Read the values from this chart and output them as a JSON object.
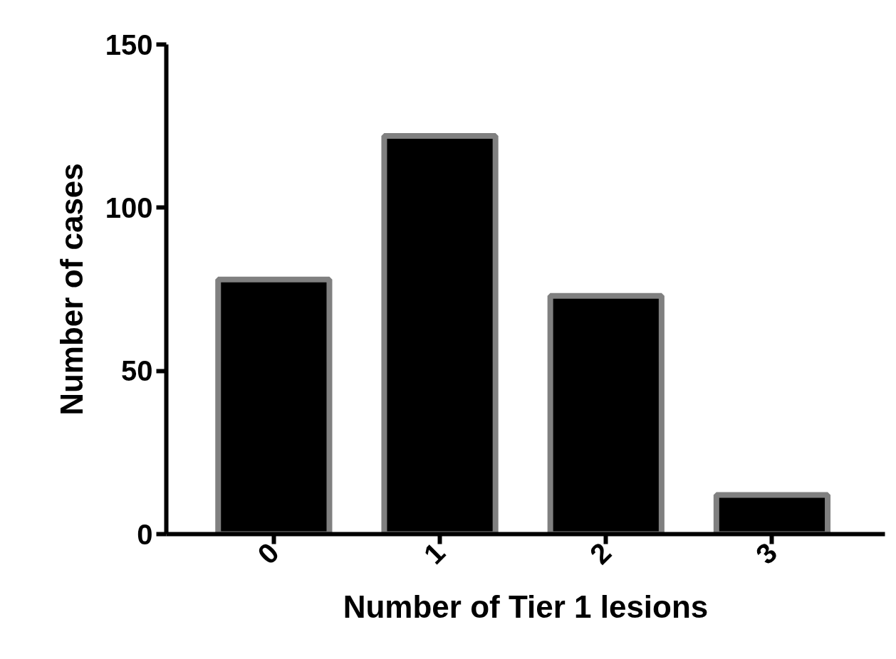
{
  "chart_data": {
    "type": "bar",
    "xlabel": "Number of Tier 1 lesions",
    "ylabel": "Number of cases",
    "categories": [
      "0",
      "1",
      "2",
      "3"
    ],
    "values": [
      78,
      122,
      73,
      12
    ],
    "color": "#000000",
    "ylim": [
      0,
      150
    ],
    "yticks": [
      0,
      50,
      100,
      150
    ],
    "grid": false
  }
}
